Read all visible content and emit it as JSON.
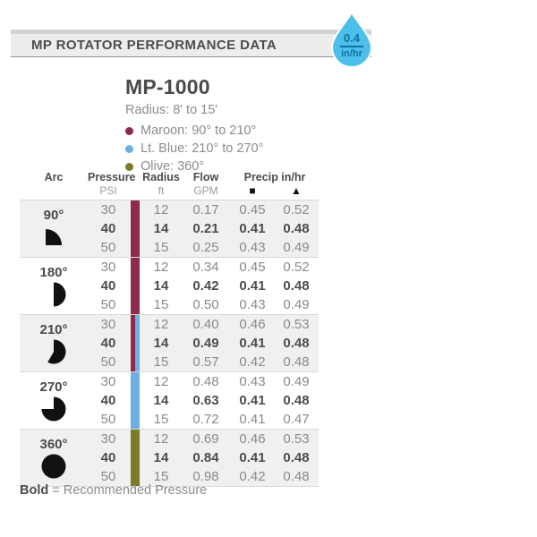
{
  "header": {
    "title": "MP ROTATOR PERFORMANCE DATA",
    "droplet": {
      "value": "0.4",
      "unit": "in/hr",
      "fill_color": "#4cc0ea",
      "text_color": "#11719f"
    }
  },
  "product": {
    "name": "MP-1000",
    "radius": "Radius: 8' to 15'",
    "legend": [
      {
        "label": "Maroon: 90° to 210°",
        "color": "#8e2b4c"
      },
      {
        "label": "Lt. Blue: 210° to 270°",
        "color": "#6bb0e0"
      },
      {
        "label": "Olive: 360°",
        "color": "#7c792b"
      }
    ]
  },
  "table": {
    "columns": {
      "arc": "Arc",
      "pressure": {
        "label": "Pressure",
        "unit": "PSI"
      },
      "radius": {
        "label": "Radius",
        "unit": "ft"
      },
      "flow": {
        "label": "Flow",
        "unit": "GPM"
      },
      "precip": {
        "label": "Precip in/hr",
        "square": "■",
        "triangle": "▲"
      }
    },
    "sections": [
      {
        "arc": "90°",
        "arc_degrees": 90,
        "bar_colors": [
          "#8e2b4c"
        ],
        "rows": [
          {
            "psi": "30",
            "radius": "12",
            "flow": "0.17",
            "precip_sq": "0.45",
            "precip_tri": "0.52",
            "bold": false
          },
          {
            "psi": "40",
            "radius": "14",
            "flow": "0.21",
            "precip_sq": "0.41",
            "precip_tri": "0.48",
            "bold": true
          },
          {
            "psi": "50",
            "radius": "15",
            "flow": "0.25",
            "precip_sq": "0.43",
            "precip_tri": "0.49",
            "bold": false
          }
        ]
      },
      {
        "arc": "180°",
        "arc_degrees": 180,
        "bar_colors": [
          "#8e2b4c"
        ],
        "rows": [
          {
            "psi": "30",
            "radius": "12",
            "flow": "0.34",
            "precip_sq": "0.45",
            "precip_tri": "0.52",
            "bold": false
          },
          {
            "psi": "40",
            "radius": "14",
            "flow": "0.42",
            "precip_sq": "0.41",
            "precip_tri": "0.48",
            "bold": true
          },
          {
            "psi": "50",
            "radius": "15",
            "flow": "0.50",
            "precip_sq": "0.43",
            "precip_tri": "0.49",
            "bold": false
          }
        ]
      },
      {
        "arc": "210°",
        "arc_degrees": 210,
        "bar_colors": [
          "#8e2b4c",
          "#6bb0e0"
        ],
        "rows": [
          {
            "psi": "30",
            "radius": "12",
            "flow": "0.40",
            "precip_sq": "0.46",
            "precip_tri": "0.53",
            "bold": false
          },
          {
            "psi": "40",
            "radius": "14",
            "flow": "0.49",
            "precip_sq": "0.41",
            "precip_tri": "0.48",
            "bold": true
          },
          {
            "psi": "50",
            "radius": "15",
            "flow": "0.57",
            "precip_sq": "0.42",
            "precip_tri": "0.48",
            "bold": false
          }
        ]
      },
      {
        "arc": "270°",
        "arc_degrees": 270,
        "bar_colors": [
          "#6bb0e0"
        ],
        "rows": [
          {
            "psi": "30",
            "radius": "12",
            "flow": "0.48",
            "precip_sq": "0.43",
            "precip_tri": "0.49",
            "bold": false
          },
          {
            "psi": "40",
            "radius": "14",
            "flow": "0.63",
            "precip_sq": "0.41",
            "precip_tri": "0.48",
            "bold": true
          },
          {
            "psi": "50",
            "radius": "15",
            "flow": "0.72",
            "precip_sq": "0.41",
            "precip_tri": "0.47",
            "bold": false
          }
        ]
      },
      {
        "arc": "360°",
        "arc_degrees": 360,
        "bar_colors": [
          "#7c792b"
        ],
        "rows": [
          {
            "psi": "30",
            "radius": "12",
            "flow": "0.69",
            "precip_sq": "0.46",
            "precip_tri": "0.53",
            "bold": false
          },
          {
            "psi": "40",
            "radius": "14",
            "flow": "0.84",
            "precip_sq": "0.41",
            "precip_tri": "0.48",
            "bold": true
          },
          {
            "psi": "50",
            "radius": "15",
            "flow": "0.98",
            "precip_sq": "0.42",
            "precip_tri": "0.48",
            "bold": false
          }
        ]
      }
    ],
    "footnote": {
      "bold": "Bold",
      "text": " = Recommended Pressure"
    }
  }
}
